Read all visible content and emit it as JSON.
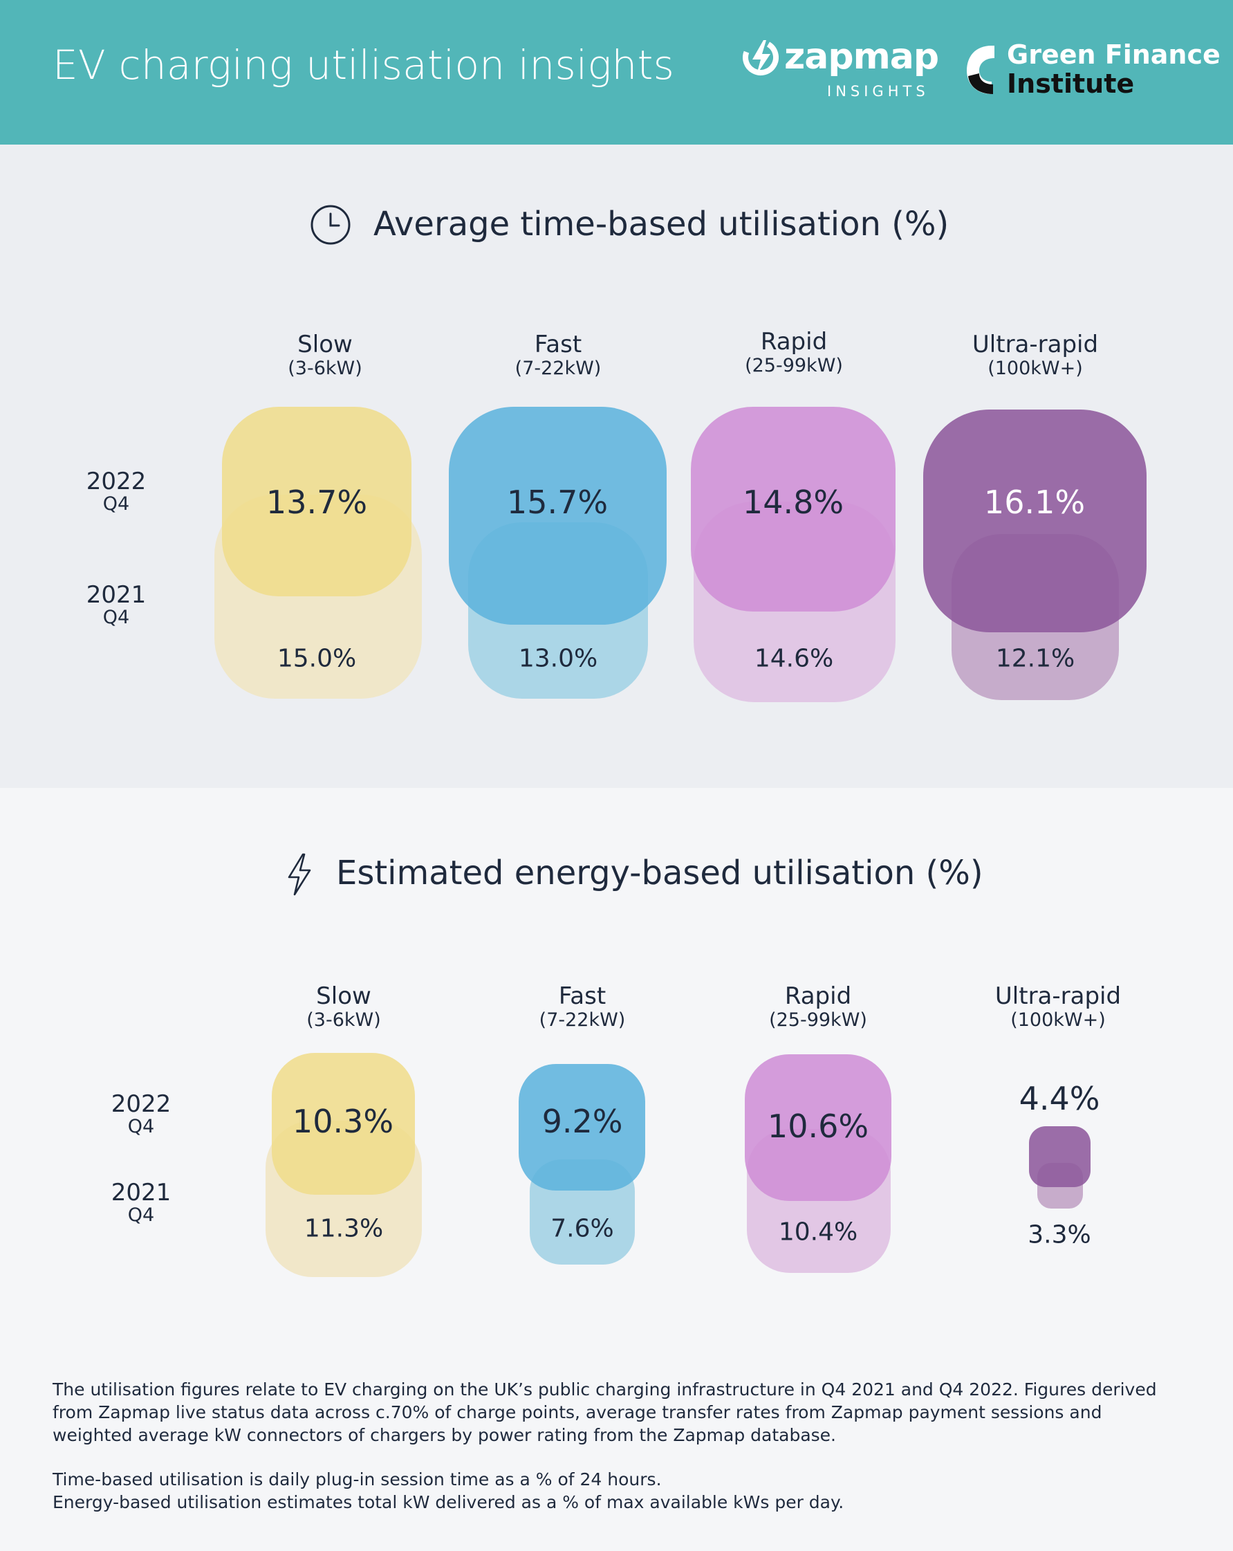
{
  "header": {
    "title": "EV charging utilisation insights",
    "zapmap_name": "zapmap",
    "zapmap_sub": "INSIGHTS",
    "gfi_line1": "Green Finance",
    "gfi_line2": "Institute",
    "background": "#52b6b8"
  },
  "row_labels": {
    "y2022": "2022",
    "q2022": "Q4",
    "y2021": "2021",
    "q2021": "Q4"
  },
  "columns": [
    {
      "name": "Slow",
      "range": "(3-6kW)"
    },
    {
      "name": "Fast",
      "range": "(7-22kW)"
    },
    {
      "name": "Rapid",
      "range": "(25-99kW)"
    },
    {
      "name": "Ultra-rapid",
      "range": "(100kW+)"
    }
  ],
  "section1": {
    "title": "Average time-based utilisation (%)",
    "icon": "clock-icon"
  },
  "section2": {
    "title": "Estimated energy-based utilisation (%)",
    "icon": "lightning-icon"
  },
  "chart_data": [
    {
      "type": "bubble",
      "title": "Average time-based utilisation (%)",
      "categories": [
        "Slow (3-6kW)",
        "Fast (7-22kW)",
        "Rapid (25-99kW)",
        "Ultra-rapid (100kW+)"
      ],
      "series": [
        {
          "name": "2022 Q4",
          "values": [
            13.7,
            15.7,
            14.8,
            16.1
          ],
          "labels": [
            "13.7%",
            "15.7%",
            "14.8%",
            "16.1%"
          ]
        },
        {
          "name": "2021 Q4",
          "values": [
            15.0,
            13.0,
            14.6,
            12.1
          ],
          "labels": [
            "15.0%",
            "13.0%",
            "14.6%",
            "12.1%"
          ]
        }
      ],
      "colors": {
        "2022": [
          "#f0dc8a",
          "#5eb4dd",
          "#cf8fd6",
          "#8e5a9c"
        ],
        "2021": [
          "#f0e6c6",
          "#a8d4e6",
          "#e0c4e4",
          "#c4a8c8"
        ]
      }
    },
    {
      "type": "bubble",
      "title": "Estimated energy-based utilisation (%)",
      "categories": [
        "Slow (3-6kW)",
        "Fast (7-22kW)",
        "Rapid (25-99kW)",
        "Ultra-rapid (100kW+)"
      ],
      "series": [
        {
          "name": "2022 Q4",
          "values": [
            10.3,
            9.2,
            10.6,
            4.4
          ],
          "labels": [
            "10.3%",
            "9.2%",
            "10.6%",
            "4.4%"
          ]
        },
        {
          "name": "2021 Q4",
          "values": [
            11.3,
            7.6,
            10.4,
            3.3
          ],
          "labels": [
            "11.3%",
            "7.6%",
            "10.4%",
            "3.3%"
          ]
        }
      ],
      "colors": {
        "2022": [
          "#f0dc8a",
          "#5eb4dd",
          "#cf8fd6",
          "#8e5a9c"
        ],
        "2021": [
          "#f0e6c6",
          "#a8d4e6",
          "#e0c4e4",
          "#c4a8c8"
        ]
      }
    }
  ],
  "footnotes": {
    "p1": "The utilisation figures relate to EV charging on the UK’s public charging infrastructure in Q4 2021 and Q4 2022. Figures derived from Zapmap live status data across c.70% of charge points, average transfer rates from Zapmap payment sessions and weighted average kW connectors of chargers by power rating from the Zapmap database.",
    "p2": "Time-based utilisation is daily plug-in session time as a % of 24 hours.",
    "p3": "Energy-based utilisation estimates total kW delivered as a % of max available kWs per day."
  }
}
